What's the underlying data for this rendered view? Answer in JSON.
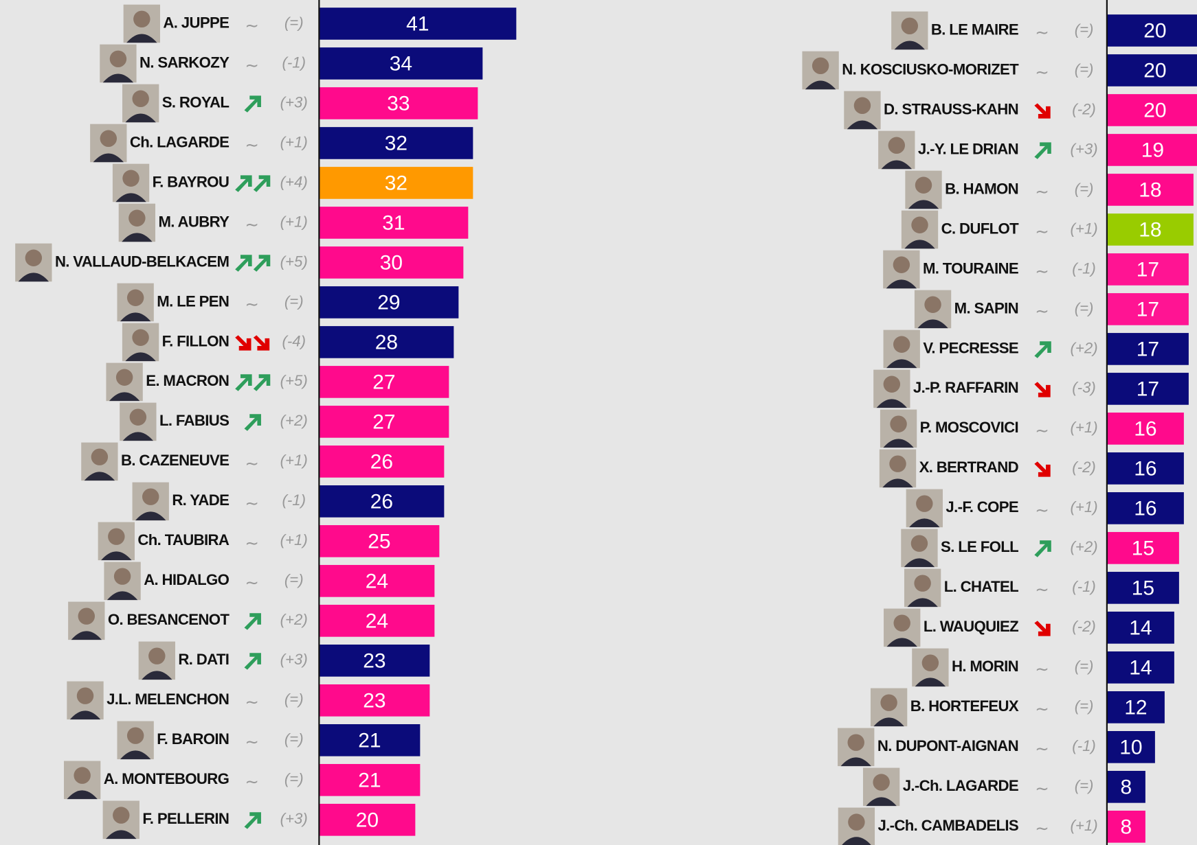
{
  "chart_data": [
    {
      "type": "bar",
      "orientation": "horizontal",
      "xlim": [
        0,
        50
      ],
      "categories": [
        "A. JUPPE",
        "N. SARKOZY",
        "S. ROYAL",
        "Ch. LAGARDE",
        "F. BAYROU",
        "M. AUBRY",
        "N. VALLAUD-BELKACEM",
        "M. LE PEN",
        "F. FILLON",
        "E. MACRON",
        "L. FABIUS",
        "B. CAZENEUVE",
        "R. YADE",
        "Ch. TAUBIRA",
        "A. HIDALGO",
        "O. BESANCENOT",
        "R. DATI",
        "J.L. MELENCHON",
        "F. BAROIN",
        "A. MONTEBOURG",
        "F. PELLERIN"
      ],
      "values": [
        41,
        34,
        33,
        32,
        32,
        31,
        30,
        29,
        28,
        27,
        27,
        26,
        26,
        25,
        24,
        24,
        23,
        23,
        21,
        21,
        20
      ],
      "changes": [
        "(=)",
        "(-1)",
        "(+3)",
        "(+1)",
        "(+4)",
        "(+1)",
        "(+5)",
        "(=)",
        "(-4)",
        "(+5)",
        "(+2)",
        "(+1)",
        "(-1)",
        "(+1)",
        "(=)",
        "(+2)",
        "(+3)",
        "(=)",
        "(=)",
        "(=)",
        "(+3)"
      ],
      "colors": [
        "#0b0b7a",
        "#0b0b7a",
        "#ff0a8c",
        "#0b0b7a",
        "#ff9900",
        "#ff0a8c",
        "#ff0a8c",
        "#0b0b7a",
        "#0b0b7a",
        "#ff0a8c",
        "#ff0a8c",
        "#ff0a8c",
        "#0b0b7a",
        "#ff0a8c",
        "#ff0a8c",
        "#ff0a8c",
        "#0b0b7a",
        "#ff0a8c",
        "#0b0b7a",
        "#ff0a8c",
        "#ff0a8c"
      ]
    },
    {
      "type": "bar",
      "orientation": "horizontal",
      "xlim": [
        0,
        50
      ],
      "categories": [
        "B. LE MAIRE",
        "N. KOSCIUSKO-MORIZET",
        "D. STRAUSS-KAHN",
        "J.-Y. LE DRIAN",
        "B. HAMON",
        "C. DUFLOT",
        "M. TOURAINE",
        "M. SAPIN",
        "V. PECRESSE",
        "J.-P. RAFFARIN",
        "P. MOSCOVICI",
        "X. BERTRAND",
        "J.-F. COPE",
        "S. LE FOLL",
        "L. CHATEL",
        "L. WAUQUIEZ",
        "H. MORIN",
        "B. HORTEFEUX",
        "N. DUPONT-AIGNAN",
        "J.-Ch. LAGARDE",
        "J.-Ch. CAMBADELIS"
      ],
      "values": [
        20,
        20,
        20,
        19,
        18,
        18,
        17,
        17,
        17,
        17,
        16,
        16,
        16,
        15,
        15,
        14,
        14,
        12,
        10,
        8,
        8
      ],
      "changes": [
        "(=)",
        "(=)",
        "(-2)",
        "(+3)",
        "(=)",
        "(+1)",
        "(-1)",
        "(=)",
        "(+2)",
        "(-3)",
        "(+1)",
        "(-2)",
        "(+1)",
        "(+2)",
        "(-1)",
        "(-2)",
        "(=)",
        "(=)",
        "(-1)",
        "(=)",
        "(+1)"
      ],
      "colors": [
        "#0b0b7a",
        "#0b0b7a",
        "#ff0a8c",
        "#ff0a8c",
        "#ff0a8c",
        "#99cc00",
        "#ff1493",
        "#ff1493",
        "#0b0b7a",
        "#0b0b7a",
        "#ff0a8c",
        "#0b0b7a",
        "#0b0b7a",
        "#ff0a8c",
        "#0b0b7a",
        "#0b0b7a",
        "#0b0b7a",
        "#0b0b7a",
        "#0b0b7a",
        "#0b0b7a",
        "#ff0a8c"
      ]
    }
  ]
}
